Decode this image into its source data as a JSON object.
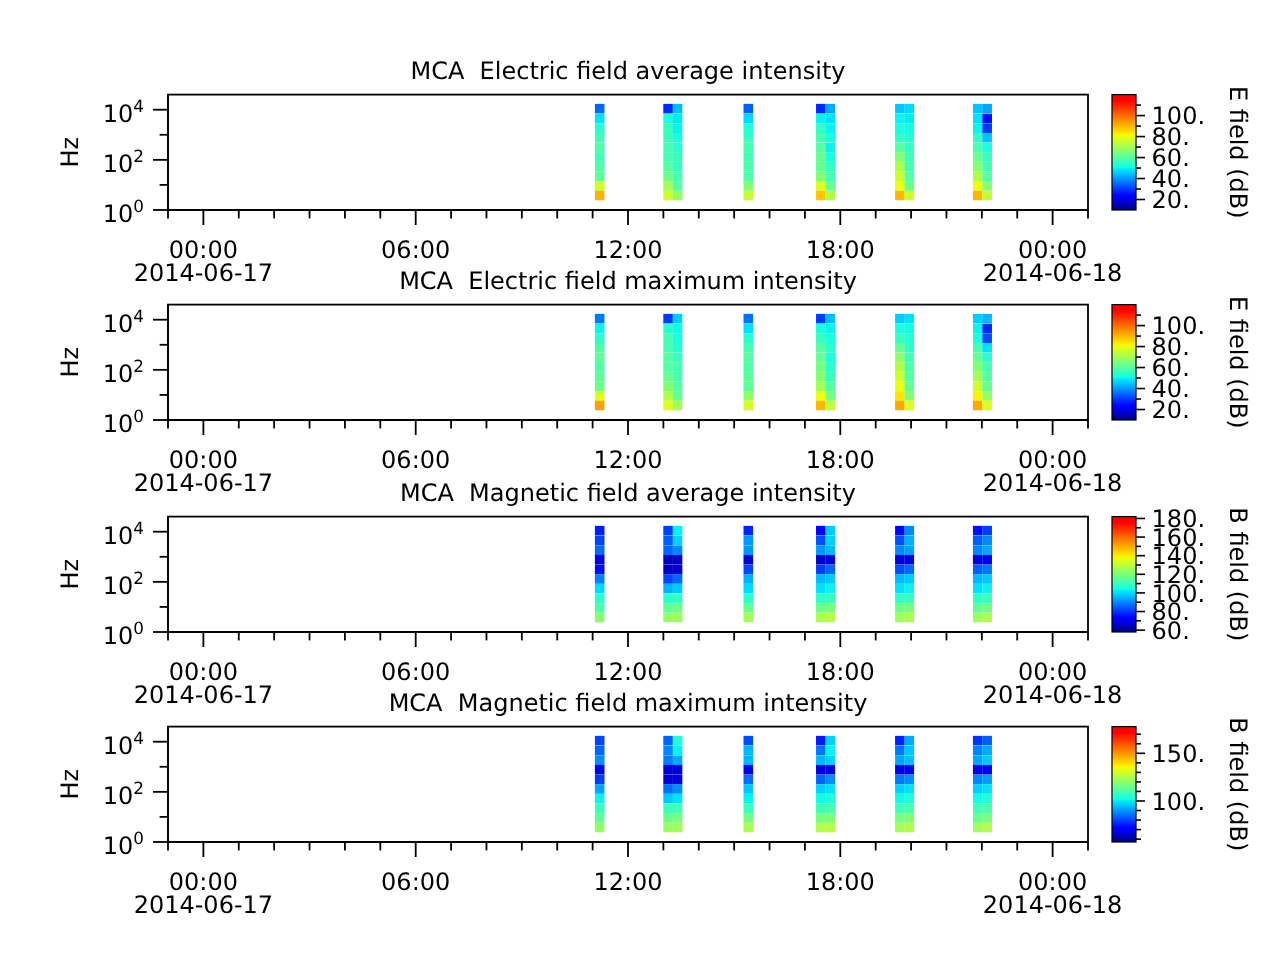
{
  "chart_data": [
    {
      "type": "scatter",
      "title": "MCA  Electric field average intensity",
      "ylabel": "Hz",
      "clabel": "E field (dB)",
      "log": "y",
      "marker": "square",
      "x": [
        "2014-06-17T11:12",
        "2014-06-17T11:12",
        "2014-06-17T11:12",
        "2014-06-17T11:12",
        "2014-06-17T11:12",
        "2014-06-17T11:12",
        "2014-06-17T11:12",
        "2014-06-17T11:12",
        "2014-06-17T11:12",
        "2014-06-17T11:12",
        "2014-06-17T13:08",
        "2014-06-17T13:08",
        "2014-06-17T13:08",
        "2014-06-17T13:08",
        "2014-06-17T13:08",
        "2014-06-17T13:08",
        "2014-06-17T13:08",
        "2014-06-17T13:08",
        "2014-06-17T13:08",
        "2014-06-17T13:08",
        "2014-06-17T13:24",
        "2014-06-17T13:24",
        "2014-06-17T13:24",
        "2014-06-17T13:24",
        "2014-06-17T13:24",
        "2014-06-17T13:24",
        "2014-06-17T13:24",
        "2014-06-17T13:24",
        "2014-06-17T13:24",
        "2014-06-17T13:24",
        "2014-06-17T15:24",
        "2014-06-17T15:24",
        "2014-06-17T15:24",
        "2014-06-17T15:24",
        "2014-06-17T15:24",
        "2014-06-17T15:24",
        "2014-06-17T15:24",
        "2014-06-17T15:24",
        "2014-06-17T15:24",
        "2014-06-17T15:24",
        "2014-06-17T17:27",
        "2014-06-17T17:27",
        "2014-06-17T17:27",
        "2014-06-17T17:27",
        "2014-06-17T17:27",
        "2014-06-17T17:27",
        "2014-06-17T17:27",
        "2014-06-17T17:27",
        "2014-06-17T17:27",
        "2014-06-17T17:27",
        "2014-06-17T17:43",
        "2014-06-17T17:43",
        "2014-06-17T17:43",
        "2014-06-17T17:43",
        "2014-06-17T17:43",
        "2014-06-17T17:43",
        "2014-06-17T17:43",
        "2014-06-17T17:43",
        "2014-06-17T17:43",
        "2014-06-17T17:43",
        "2014-06-17T19:41",
        "2014-06-17T19:41",
        "2014-06-17T19:41",
        "2014-06-17T19:41",
        "2014-06-17T19:41",
        "2014-06-17T19:41",
        "2014-06-17T19:41",
        "2014-06-17T19:41",
        "2014-06-17T19:41",
        "2014-06-17T19:41",
        "2014-06-17T19:57",
        "2014-06-17T19:57",
        "2014-06-17T19:57",
        "2014-06-17T19:57",
        "2014-06-17T19:57",
        "2014-06-17T19:57",
        "2014-06-17T19:57",
        "2014-06-17T19:57",
        "2014-06-17T19:57",
        "2014-06-17T19:57",
        "2014-06-17T21:53",
        "2014-06-17T21:53",
        "2014-06-17T21:53",
        "2014-06-17T21:53",
        "2014-06-17T21:53",
        "2014-06-17T21:53",
        "2014-06-17T21:53",
        "2014-06-17T21:53",
        "2014-06-17T21:53",
        "2014-06-17T21:53",
        "2014-06-17T22:09",
        "2014-06-17T22:09",
        "2014-06-17T22:09",
        "2014-06-17T22:09",
        "2014-06-17T22:09",
        "2014-06-17T22:09",
        "2014-06-17T22:09",
        "2014-06-17T22:09",
        "2014-06-17T22:09",
        "2014-06-17T22:09"
      ],
      "values": [
        11000,
        4400,
        1800,
        760,
        310,
        130,
        54,
        22,
        9.1,
        3.8,
        11000,
        4400,
        1800,
        760,
        310,
        130,
        54,
        22,
        9.1,
        3.8,
        11000,
        4400,
        1800,
        760,
        310,
        130,
        54,
        22,
        9.1,
        3.8,
        11000,
        4400,
        1800,
        760,
        310,
        130,
        54,
        22,
        9.1,
        3.8,
        11000,
        4400,
        1800,
        760,
        310,
        130,
        54,
        22,
        9.1,
        3.8,
        11000,
        4400,
        1800,
        760,
        310,
        130,
        54,
        22,
        9.1,
        3.8,
        11000,
        4400,
        1800,
        760,
        310,
        130,
        54,
        22,
        9.1,
        3.8,
        11000,
        4400,
        1800,
        760,
        310,
        130,
        54,
        22,
        9.1,
        3.8,
        11000,
        4400,
        1800,
        760,
        310,
        130,
        54,
        22,
        9.1,
        3.8,
        11000,
        4400,
        1800,
        760,
        310,
        130,
        54,
        22,
        9.1,
        3.8
      ],
      "cvalues": [
        35,
        48,
        54,
        57,
        59,
        57,
        59,
        61,
        76,
        91,
        28,
        52,
        56,
        56,
        58,
        58,
        60,
        63,
        70,
        76,
        44,
        49,
        50,
        52,
        54,
        56,
        56,
        58,
        60,
        68,
        34,
        47,
        53,
        56,
        58,
        57,
        59,
        59,
        66,
        75,
        28,
        50,
        55,
        58,
        60,
        62,
        62,
        66,
        78,
        88,
        42,
        48,
        50,
        52,
        50,
        52,
        55,
        58,
        62,
        72,
        45,
        50,
        52,
        55,
        60,
        66,
        72,
        76,
        80,
        90,
        47,
        49,
        51,
        53,
        55,
        57,
        58,
        60,
        63,
        76,
        45,
        48,
        50,
        55,
        58,
        62,
        66,
        72,
        80,
        90,
        42,
        25,
        30,
        45,
        52,
        56,
        58,
        60,
        66,
        75
      ],
      "xlim": [
        "2014-06-16T23:00",
        "2014-06-18T01:00"
      ],
      "xticks": [
        {
          "value": "2014-06-16T23:00",
          "label": null
        },
        {
          "value": "2014-06-17T00:00",
          "label": "00:00\n2014-06-17"
        },
        {
          "value": "2014-06-17T01:00",
          "label": null
        },
        {
          "value": "2014-06-17T02:00",
          "label": null
        },
        {
          "value": "2014-06-17T03:00",
          "label": null
        },
        {
          "value": "2014-06-17T04:00",
          "label": null
        },
        {
          "value": "2014-06-17T05:00",
          "label": null
        },
        {
          "value": "2014-06-17T06:00",
          "label": "06:00"
        },
        {
          "value": "2014-06-17T07:00",
          "label": null
        },
        {
          "value": "2014-06-17T08:00",
          "label": null
        },
        {
          "value": "2014-06-17T09:00",
          "label": null
        },
        {
          "value": "2014-06-17T10:00",
          "label": null
        },
        {
          "value": "2014-06-17T11:00",
          "label": null
        },
        {
          "value": "2014-06-17T12:00",
          "label": "12:00"
        },
        {
          "value": "2014-06-17T13:00",
          "label": null
        },
        {
          "value": "2014-06-17T14:00",
          "label": null
        },
        {
          "value": "2014-06-17T15:00",
          "label": null
        },
        {
          "value": "2014-06-17T16:00",
          "label": null
        },
        {
          "value": "2014-06-17T17:00",
          "label": null
        },
        {
          "value": "2014-06-17T18:00",
          "label": "18:00"
        },
        {
          "value": "2014-06-17T19:00",
          "label": null
        },
        {
          "value": "2014-06-17T20:00",
          "label": null
        },
        {
          "value": "2014-06-17T21:00",
          "label": null
        },
        {
          "value": "2014-06-17T22:00",
          "label": null
        },
        {
          "value": "2014-06-17T23:00",
          "label": null
        },
        {
          "value": "2014-06-18T00:00",
          "label": "00:00\n2014-06-18"
        },
        {
          "value": "2014-06-18T01:00",
          "label": null
        }
      ],
      "ylim": [
        1,
        40000
      ],
      "yticks": [
        {
          "value": 1,
          "label": "10$^{0}$"
        },
        {
          "value": 10,
          "label": null
        },
        {
          "value": 100,
          "label": "10$^{2}$"
        },
        {
          "value": 1000,
          "label": null
        },
        {
          "value": 10000,
          "label": "10$^{4}$"
        }
      ],
      "clim": [
        10,
        120
      ],
      "cticks": [
        {
          "value": 20,
          "label": "20."
        },
        {
          "value": 30,
          "label": null
        },
        {
          "value": 40,
          "label": "40."
        },
        {
          "value": 50,
          "label": null
        },
        {
          "value": 60,
          "label": "60."
        },
        {
          "value": 70,
          "label": null
        },
        {
          "value": 80,
          "label": "80."
        },
        {
          "value": 90,
          "label": null
        },
        {
          "value": 100,
          "label": "100."
        },
        {
          "value": 110,
          "label": null
        }
      ]
    },
    {
      "type": "scatter",
      "title": "MCA  Electric field maximum intensity",
      "ylabel": "Hz",
      "clabel": "E field (dB)",
      "log": "y",
      "marker": "square",
      "x": [
        "2014-06-17T11:12",
        "2014-06-17T11:12",
        "2014-06-17T11:12",
        "2014-06-17T11:12",
        "2014-06-17T11:12",
        "2014-06-17T11:12",
        "2014-06-17T11:12",
        "2014-06-17T11:12",
        "2014-06-17T11:12",
        "2014-06-17T11:12",
        "2014-06-17T13:08",
        "2014-06-17T13:08",
        "2014-06-17T13:08",
        "2014-06-17T13:08",
        "2014-06-17T13:08",
        "2014-06-17T13:08",
        "2014-06-17T13:08",
        "2014-06-17T13:08",
        "2014-06-17T13:08",
        "2014-06-17T13:08",
        "2014-06-17T13:24",
        "2014-06-17T13:24",
        "2014-06-17T13:24",
        "2014-06-17T13:24",
        "2014-06-17T13:24",
        "2014-06-17T13:24",
        "2014-06-17T13:24",
        "2014-06-17T13:24",
        "2014-06-17T13:24",
        "2014-06-17T13:24",
        "2014-06-17T15:24",
        "2014-06-17T15:24",
        "2014-06-17T15:24",
        "2014-06-17T15:24",
        "2014-06-17T15:24",
        "2014-06-17T15:24",
        "2014-06-17T15:24",
        "2014-06-17T15:24",
        "2014-06-17T15:24",
        "2014-06-17T15:24",
        "2014-06-17T17:27",
        "2014-06-17T17:27",
        "2014-06-17T17:27",
        "2014-06-17T17:27",
        "2014-06-17T17:27",
        "2014-06-17T17:27",
        "2014-06-17T17:27",
        "2014-06-17T17:27",
        "2014-06-17T17:27",
        "2014-06-17T17:27",
        "2014-06-17T17:43",
        "2014-06-17T17:43",
        "2014-06-17T17:43",
        "2014-06-17T17:43",
        "2014-06-17T17:43",
        "2014-06-17T17:43",
        "2014-06-17T17:43",
        "2014-06-17T17:43",
        "2014-06-17T17:43",
        "2014-06-17T17:43",
        "2014-06-17T19:41",
        "2014-06-17T19:41",
        "2014-06-17T19:41",
        "2014-06-17T19:41",
        "2014-06-17T19:41",
        "2014-06-17T19:41",
        "2014-06-17T19:41",
        "2014-06-17T19:41",
        "2014-06-17T19:41",
        "2014-06-17T19:41",
        "2014-06-17T19:57",
        "2014-06-17T19:57",
        "2014-06-17T19:57",
        "2014-06-17T19:57",
        "2014-06-17T19:57",
        "2014-06-17T19:57",
        "2014-06-17T19:57",
        "2014-06-17T19:57",
        "2014-06-17T19:57",
        "2014-06-17T19:57",
        "2014-06-17T21:53",
        "2014-06-17T21:53",
        "2014-06-17T21:53",
        "2014-06-17T21:53",
        "2014-06-17T21:53",
        "2014-06-17T21:53",
        "2014-06-17T21:53",
        "2014-06-17T21:53",
        "2014-06-17T21:53",
        "2014-06-17T21:53",
        "2014-06-17T22:09",
        "2014-06-17T22:09",
        "2014-06-17T22:09",
        "2014-06-17T22:09",
        "2014-06-17T22:09",
        "2014-06-17T22:09",
        "2014-06-17T22:09",
        "2014-06-17T22:09",
        "2014-06-17T22:09",
        "2014-06-17T22:09"
      ],
      "values": [
        11000,
        4400,
        1800,
        760,
        310,
        130,
        54,
        22,
        9.1,
        3.8,
        11000,
        4400,
        1800,
        760,
        310,
        130,
        54,
        22,
        9.1,
        3.8,
        11000,
        4400,
        1800,
        760,
        310,
        130,
        54,
        22,
        9.1,
        3.8,
        11000,
        4400,
        1800,
        760,
        310,
        130,
        54,
        22,
        9.1,
        3.8,
        11000,
        4400,
        1800,
        760,
        310,
        130,
        54,
        22,
        9.1,
        3.8,
        11000,
        4400,
        1800,
        760,
        310,
        130,
        54,
        22,
        9.1,
        3.8,
        11000,
        4400,
        1800,
        760,
        310,
        130,
        54,
        22,
        9.1,
        3.8,
        11000,
        4400,
        1800,
        760,
        310,
        130,
        54,
        22,
        9.1,
        3.8,
        11000,
        4400,
        1800,
        760,
        310,
        130,
        54,
        22,
        9.1,
        3.8,
        11000,
        4400,
        1800,
        760,
        310,
        130,
        54,
        22,
        9.1,
        3.8
      ],
      "cvalues": [
        37,
        50,
        55,
        59,
        61,
        59,
        61,
        63,
        78,
        93,
        30,
        54,
        58,
        58,
        60,
        60,
        62,
        66,
        72,
        78,
        46,
        51,
        52,
        54,
        56,
        58,
        58,
        60,
        62,
        70,
        36,
        48,
        54,
        58,
        60,
        59,
        61,
        61,
        68,
        77,
        30,
        52,
        56,
        60,
        62,
        64,
        66,
        70,
        80,
        90,
        44,
        50,
        52,
        54,
        52,
        54,
        56,
        60,
        64,
        74,
        46,
        52,
        56,
        62,
        68,
        72,
        76,
        80,
        84,
        92,
        48,
        51,
        53,
        55,
        57,
        59,
        60,
        62,
        66,
        78,
        46,
        50,
        52,
        58,
        62,
        66,
        70,
        76,
        82,
        92,
        44,
        28,
        32,
        48,
        54,
        58,
        60,
        62,
        68,
        78
      ],
      "xlim": [
        "2014-06-16T23:00",
        "2014-06-18T01:00"
      ],
      "xticks": [
        {
          "value": "2014-06-16T23:00",
          "label": null
        },
        {
          "value": "2014-06-17T00:00",
          "label": "00:00\n2014-06-17"
        },
        {
          "value": "2014-06-17T01:00",
          "label": null
        },
        {
          "value": "2014-06-17T02:00",
          "label": null
        },
        {
          "value": "2014-06-17T03:00",
          "label": null
        },
        {
          "value": "2014-06-17T04:00",
          "label": null
        },
        {
          "value": "2014-06-17T05:00",
          "label": null
        },
        {
          "value": "2014-06-17T06:00",
          "label": "06:00"
        },
        {
          "value": "2014-06-17T07:00",
          "label": null
        },
        {
          "value": "2014-06-17T08:00",
          "label": null
        },
        {
          "value": "2014-06-17T09:00",
          "label": null
        },
        {
          "value": "2014-06-17T10:00",
          "label": null
        },
        {
          "value": "2014-06-17T11:00",
          "label": null
        },
        {
          "value": "2014-06-17T12:00",
          "label": "12:00"
        },
        {
          "value": "2014-06-17T13:00",
          "label": null
        },
        {
          "value": "2014-06-17T14:00",
          "label": null
        },
        {
          "value": "2014-06-17T15:00",
          "label": null
        },
        {
          "value": "2014-06-17T16:00",
          "label": null
        },
        {
          "value": "2014-06-17T17:00",
          "label": null
        },
        {
          "value": "2014-06-17T18:00",
          "label": "18:00"
        },
        {
          "value": "2014-06-17T19:00",
          "label": null
        },
        {
          "value": "2014-06-17T20:00",
          "label": null
        },
        {
          "value": "2014-06-17T21:00",
          "label": null
        },
        {
          "value": "2014-06-17T22:00",
          "label": null
        },
        {
          "value": "2014-06-17T23:00",
          "label": null
        },
        {
          "value": "2014-06-18T00:00",
          "label": "00:00\n2014-06-18"
        },
        {
          "value": "2014-06-18T01:00",
          "label": null
        }
      ],
      "ylim": [
        1,
        40000
      ],
      "yticks": [
        {
          "value": 1,
          "label": "10$^{0}$"
        },
        {
          "value": 10,
          "label": null
        },
        {
          "value": 100,
          "label": "10$^{2}$"
        },
        {
          "value": 1000,
          "label": null
        },
        {
          "value": 10000,
          "label": "10$^{4}$"
        }
      ],
      "clim": [
        10,
        120
      ],
      "cticks": [
        {
          "value": 20,
          "label": "20."
        },
        {
          "value": 30,
          "label": null
        },
        {
          "value": 40,
          "label": "40."
        },
        {
          "value": 50,
          "label": null
        },
        {
          "value": 60,
          "label": "60."
        },
        {
          "value": 70,
          "label": null
        },
        {
          "value": 80,
          "label": "80."
        },
        {
          "value": 90,
          "label": null
        },
        {
          "value": 100,
          "label": "100."
        },
        {
          "value": 110,
          "label": null
        }
      ]
    },
    {
      "type": "scatter",
      "title": "MCA  Magnetic field average intensity",
      "ylabel": "Hz",
      "clabel": "B field (dB)",
      "log": "y",
      "marker": "square",
      "x": [
        "2014-06-17T11:12",
        "2014-06-17T11:12",
        "2014-06-17T11:12",
        "2014-06-17T11:12",
        "2014-06-17T11:12",
        "2014-06-17T11:12",
        "2014-06-17T11:12",
        "2014-06-17T11:12",
        "2014-06-17T11:12",
        "2014-06-17T11:12",
        "2014-06-17T13:08",
        "2014-06-17T13:08",
        "2014-06-17T13:08",
        "2014-06-17T13:08",
        "2014-06-17T13:08",
        "2014-06-17T13:08",
        "2014-06-17T13:08",
        "2014-06-17T13:08",
        "2014-06-17T13:08",
        "2014-06-17T13:08",
        "2014-06-17T13:24",
        "2014-06-17T13:24",
        "2014-06-17T13:24",
        "2014-06-17T13:24",
        "2014-06-17T13:24",
        "2014-06-17T13:24",
        "2014-06-17T13:24",
        "2014-06-17T13:24",
        "2014-06-17T13:24",
        "2014-06-17T13:24",
        "2014-06-17T15:24",
        "2014-06-17T15:24",
        "2014-06-17T15:24",
        "2014-06-17T15:24",
        "2014-06-17T15:24",
        "2014-06-17T15:24",
        "2014-06-17T15:24",
        "2014-06-17T15:24",
        "2014-06-17T15:24",
        "2014-06-17T15:24",
        "2014-06-17T17:27",
        "2014-06-17T17:27",
        "2014-06-17T17:27",
        "2014-06-17T17:27",
        "2014-06-17T17:27",
        "2014-06-17T17:27",
        "2014-06-17T17:27",
        "2014-06-17T17:27",
        "2014-06-17T17:27",
        "2014-06-17T17:27",
        "2014-06-17T17:43",
        "2014-06-17T17:43",
        "2014-06-17T17:43",
        "2014-06-17T17:43",
        "2014-06-17T17:43",
        "2014-06-17T17:43",
        "2014-06-17T17:43",
        "2014-06-17T17:43",
        "2014-06-17T17:43",
        "2014-06-17T17:43",
        "2014-06-17T19:41",
        "2014-06-17T19:41",
        "2014-06-17T19:41",
        "2014-06-17T19:41",
        "2014-06-17T19:41",
        "2014-06-17T19:41",
        "2014-06-17T19:41",
        "2014-06-17T19:41",
        "2014-06-17T19:41",
        "2014-06-17T19:41",
        "2014-06-17T19:57",
        "2014-06-17T19:57",
        "2014-06-17T19:57",
        "2014-06-17T19:57",
        "2014-06-17T19:57",
        "2014-06-17T19:57",
        "2014-06-17T19:57",
        "2014-06-17T19:57",
        "2014-06-17T19:57",
        "2014-06-17T19:57",
        "2014-06-17T21:53",
        "2014-06-17T21:53",
        "2014-06-17T21:53",
        "2014-06-17T21:53",
        "2014-06-17T21:53",
        "2014-06-17T21:53",
        "2014-06-17T21:53",
        "2014-06-17T21:53",
        "2014-06-17T21:53",
        "2014-06-17T21:53",
        "2014-06-17T22:09",
        "2014-06-17T22:09",
        "2014-06-17T22:09",
        "2014-06-17T22:09",
        "2014-06-17T22:09",
        "2014-06-17T22:09",
        "2014-06-17T22:09",
        "2014-06-17T22:09",
        "2014-06-17T22:09",
        "2014-06-17T22:09"
      ],
      "values": [
        11000,
        4400,
        1800,
        760,
        310,
        130,
        54,
        22,
        9.1,
        3.8,
        11000,
        4400,
        1800,
        760,
        310,
        130,
        54,
        22,
        9.1,
        3.8,
        11000,
        4400,
        1800,
        760,
        310,
        130,
        54,
        22,
        9.1,
        3.8,
        11000,
        4400,
        1800,
        760,
        310,
        130,
        54,
        22,
        9.1,
        3.8,
        11000,
        4400,
        1800,
        760,
        310,
        130,
        54,
        22,
        9.1,
        3.8,
        11000,
        4400,
        1800,
        760,
        310,
        130,
        54,
        22,
        9.1,
        3.8,
        11000,
        4400,
        1800,
        760,
        310,
        130,
        54,
        22,
        9.1,
        3.8,
        11000,
        4400,
        1800,
        760,
        310,
        130,
        54,
        22,
        9.1,
        3.8,
        11000,
        4400,
        1800,
        760,
        310,
        130,
        54,
        22,
        9.1,
        3.8,
        11000,
        4400,
        1800,
        760,
        310,
        130,
        54,
        22,
        9.1,
        3.8
      ],
      "cvalues": [
        77,
        82,
        86,
        69,
        75,
        89,
        100,
        108,
        113,
        122,
        81,
        85,
        86,
        65,
        65,
        82,
        95,
        108,
        116,
        124,
        103,
        99,
        90,
        66,
        68,
        86,
        98,
        109,
        118,
        125,
        78,
        92,
        92,
        68,
        82,
        95,
        100,
        108,
        117,
        126,
        72,
        83,
        92,
        66,
        81,
        96,
        101,
        109,
        118,
        127,
        98,
        99,
        96,
        68,
        86,
        98,
        103,
        110,
        120,
        129,
        74,
        83,
        90,
        68,
        83,
        96,
        101,
        109,
        118,
        125,
        90,
        95,
        93,
        69,
        86,
        98,
        103,
        110,
        120,
        127,
        75,
        85,
        90,
        68,
        85,
        96,
        101,
        109,
        116,
        125,
        81,
        90,
        94,
        70,
        88,
        98,
        103,
        110,
        118,
        127
      ],
      "xlim": [
        "2014-06-16T23:00",
        "2014-06-18T01:00"
      ],
      "xticks": [
        {
          "value": "2014-06-16T23:00",
          "label": null
        },
        {
          "value": "2014-06-17T00:00",
          "label": "00:00\n2014-06-17"
        },
        {
          "value": "2014-06-17T01:00",
          "label": null
        },
        {
          "value": "2014-06-17T02:00",
          "label": null
        },
        {
          "value": "2014-06-17T03:00",
          "label": null
        },
        {
          "value": "2014-06-17T04:00",
          "label": null
        },
        {
          "value": "2014-06-17T05:00",
          "label": null
        },
        {
          "value": "2014-06-17T06:00",
          "label": "06:00"
        },
        {
          "value": "2014-06-17T07:00",
          "label": null
        },
        {
          "value": "2014-06-17T08:00",
          "label": null
        },
        {
          "value": "2014-06-17T09:00",
          "label": null
        },
        {
          "value": "2014-06-17T10:00",
          "label": null
        },
        {
          "value": "2014-06-17T11:00",
          "label": null
        },
        {
          "value": "2014-06-17T12:00",
          "label": "12:00"
        },
        {
          "value": "2014-06-17T13:00",
          "label": null
        },
        {
          "value": "2014-06-17T14:00",
          "label": null
        },
        {
          "value": "2014-06-17T15:00",
          "label": null
        },
        {
          "value": "2014-06-17T16:00",
          "label": null
        },
        {
          "value": "2014-06-17T17:00",
          "label": null
        },
        {
          "value": "2014-06-17T18:00",
          "label": "18:00"
        },
        {
          "value": "2014-06-17T19:00",
          "label": null
        },
        {
          "value": "2014-06-17T20:00",
          "label": null
        },
        {
          "value": "2014-06-17T21:00",
          "label": null
        },
        {
          "value": "2014-06-17T22:00",
          "label": null
        },
        {
          "value": "2014-06-17T23:00",
          "label": null
        },
        {
          "value": "2014-06-18T00:00",
          "label": "00:00\n2014-06-18"
        },
        {
          "value": "2014-06-18T01:00",
          "label": null
        }
      ],
      "ylim": [
        1,
        40000
      ],
      "yticks": [
        {
          "value": 1,
          "label": "10$^{0}$"
        },
        {
          "value": 10,
          "label": null
        },
        {
          "value": 100,
          "label": "10$^{2}$"
        },
        {
          "value": 1000,
          "label": null
        },
        {
          "value": 10000,
          "label": "10$^{4}$"
        }
      ],
      "clim": [
        58,
        182
      ],
      "cticks": [
        {
          "value": 60,
          "label": "60."
        },
        {
          "value": 70,
          "label": null
        },
        {
          "value": 80,
          "label": "80."
        },
        {
          "value": 90,
          "label": null
        },
        {
          "value": 100,
          "label": "100."
        },
        {
          "value": 110,
          "label": null
        },
        {
          "value": 120,
          "label": "120."
        },
        {
          "value": 130,
          "label": null
        },
        {
          "value": 140,
          "label": "140."
        },
        {
          "value": 150,
          "label": null
        },
        {
          "value": 160,
          "label": "160."
        },
        {
          "value": 170,
          "label": null
        },
        {
          "value": 180,
          "label": "180."
        }
      ]
    },
    {
      "type": "scatter",
      "title": "MCA  Magnetic field maximum intensity",
      "ylabel": "Hz",
      "clabel": "B field (dB)",
      "log": "y",
      "marker": "square",
      "x": [
        "2014-06-17T11:12",
        "2014-06-17T11:12",
        "2014-06-17T11:12",
        "2014-06-17T11:12",
        "2014-06-17T11:12",
        "2014-06-17T11:12",
        "2014-06-17T11:12",
        "2014-06-17T11:12",
        "2014-06-17T11:12",
        "2014-06-17T11:12",
        "2014-06-17T13:08",
        "2014-06-17T13:08",
        "2014-06-17T13:08",
        "2014-06-17T13:08",
        "2014-06-17T13:08",
        "2014-06-17T13:08",
        "2014-06-17T13:08",
        "2014-06-17T13:08",
        "2014-06-17T13:08",
        "2014-06-17T13:08",
        "2014-06-17T13:24",
        "2014-06-17T13:24",
        "2014-06-17T13:24",
        "2014-06-17T13:24",
        "2014-06-17T13:24",
        "2014-06-17T13:24",
        "2014-06-17T13:24",
        "2014-06-17T13:24",
        "2014-06-17T13:24",
        "2014-06-17T13:24",
        "2014-06-17T15:24",
        "2014-06-17T15:24",
        "2014-06-17T15:24",
        "2014-06-17T15:24",
        "2014-06-17T15:24",
        "2014-06-17T15:24",
        "2014-06-17T15:24",
        "2014-06-17T15:24",
        "2014-06-17T15:24",
        "2014-06-17T15:24",
        "2014-06-17T17:27",
        "2014-06-17T17:27",
        "2014-06-17T17:27",
        "2014-06-17T17:27",
        "2014-06-17T17:27",
        "2014-06-17T17:27",
        "2014-06-17T17:27",
        "2014-06-17T17:27",
        "2014-06-17T17:27",
        "2014-06-17T17:27",
        "2014-06-17T17:43",
        "2014-06-17T17:43",
        "2014-06-17T17:43",
        "2014-06-17T17:43",
        "2014-06-17T17:43",
        "2014-06-17T17:43",
        "2014-06-17T17:43",
        "2014-06-17T17:43",
        "2014-06-17T17:43",
        "2014-06-17T17:43",
        "2014-06-17T19:41",
        "2014-06-17T19:41",
        "2014-06-17T19:41",
        "2014-06-17T19:41",
        "2014-06-17T19:41",
        "2014-06-17T19:41",
        "2014-06-17T19:41",
        "2014-06-17T19:41",
        "2014-06-17T19:41",
        "2014-06-17T19:41",
        "2014-06-17T19:57",
        "2014-06-17T19:57",
        "2014-06-17T19:57",
        "2014-06-17T19:57",
        "2014-06-17T19:57",
        "2014-06-17T19:57",
        "2014-06-17T19:57",
        "2014-06-17T19:57",
        "2014-06-17T19:57",
        "2014-06-17T19:57",
        "2014-06-17T21:53",
        "2014-06-17T21:53",
        "2014-06-17T21:53",
        "2014-06-17T21:53",
        "2014-06-17T21:53",
        "2014-06-17T21:53",
        "2014-06-17T21:53",
        "2014-06-17T21:53",
        "2014-06-17T21:53",
        "2014-06-17T21:53",
        "2014-06-17T22:09",
        "2014-06-17T22:09",
        "2014-06-17T22:09",
        "2014-06-17T22:09",
        "2014-06-17T22:09",
        "2014-06-17T22:09",
        "2014-06-17T22:09",
        "2014-06-17T22:09",
        "2014-06-17T22:09",
        "2014-06-17T22:09"
      ],
      "values": [
        11000,
        4400,
        1800,
        760,
        310,
        130,
        54,
        22,
        9.1,
        3.8,
        11000,
        4400,
        1800,
        760,
        310,
        130,
        54,
        22,
        9.1,
        3.8,
        11000,
        4400,
        1800,
        760,
        310,
        130,
        54,
        22,
        9.1,
        3.8,
        11000,
        4400,
        1800,
        760,
        310,
        130,
        54,
        22,
        9.1,
        3.8,
        11000,
        4400,
        1800,
        760,
        310,
        130,
        54,
        22,
        9.1,
        3.8,
        11000,
        4400,
        1800,
        760,
        310,
        130,
        54,
        22,
        9.1,
        3.8,
        11000,
        4400,
        1800,
        760,
        310,
        130,
        54,
        22,
        9.1,
        3.8,
        11000,
        4400,
        1800,
        760,
        310,
        130,
        54,
        22,
        9.1,
        3.8,
        11000,
        4400,
        1800,
        760,
        310,
        130,
        54,
        22,
        9.1,
        3.8,
        11000,
        4400,
        1800,
        760,
        310,
        130,
        54,
        22,
        9.1,
        3.8
      ],
      "cvalues": [
        80,
        84,
        89,
        69,
        79,
        92,
        101,
        108,
        113,
        121,
        84,
        88,
        87,
        66,
        66,
        85,
        96,
        108,
        115,
        122,
        104,
        101,
        92,
        67,
        68,
        89,
        99,
        109,
        117,
        123,
        81,
        94,
        94,
        69,
        85,
        96,
        101,
        108,
        116,
        124,
        75,
        86,
        94,
        67,
        84,
        97,
        102,
        109,
        117,
        125,
        97,
        101,
        97,
        68,
        89,
        99,
        104,
        110,
        118,
        126,
        76,
        86,
        92,
        68,
        86,
        97,
        102,
        109,
        117,
        123,
        92,
        96,
        95,
        69,
        89,
        99,
        104,
        110,
        118,
        125,
        78,
        88,
        92,
        68,
        88,
        97,
        102,
        109,
        115,
        123,
        83,
        92,
        96,
        70,
        91,
        99,
        104,
        110,
        117,
        125
      ],
      "xlim": [
        "2014-06-16T23:00",
        "2014-06-18T01:00"
      ],
      "xticks": [
        {
          "value": "2014-06-16T23:00",
          "label": null
        },
        {
          "value": "2014-06-17T00:00",
          "label": "00:00\n2014-06-17"
        },
        {
          "value": "2014-06-17T01:00",
          "label": null
        },
        {
          "value": "2014-06-17T02:00",
          "label": null
        },
        {
          "value": "2014-06-17T03:00",
          "label": null
        },
        {
          "value": "2014-06-17T04:00",
          "label": null
        },
        {
          "value": "2014-06-17T05:00",
          "label": null
        },
        {
          "value": "2014-06-17T06:00",
          "label": "06:00"
        },
        {
          "value": "2014-06-17T07:00",
          "label": null
        },
        {
          "value": "2014-06-17T08:00",
          "label": null
        },
        {
          "value": "2014-06-17T09:00",
          "label": null
        },
        {
          "value": "2014-06-17T10:00",
          "label": null
        },
        {
          "value": "2014-06-17T11:00",
          "label": null
        },
        {
          "value": "2014-06-17T12:00",
          "label": "12:00"
        },
        {
          "value": "2014-06-17T13:00",
          "label": null
        },
        {
          "value": "2014-06-17T14:00",
          "label": null
        },
        {
          "value": "2014-06-17T15:00",
          "label": null
        },
        {
          "value": "2014-06-17T16:00",
          "label": null
        },
        {
          "value": "2014-06-17T17:00",
          "label": null
        },
        {
          "value": "2014-06-17T18:00",
          "label": "18:00"
        },
        {
          "value": "2014-06-17T19:00",
          "label": null
        },
        {
          "value": "2014-06-17T20:00",
          "label": null
        },
        {
          "value": "2014-06-17T21:00",
          "label": null
        },
        {
          "value": "2014-06-17T22:00",
          "label": null
        },
        {
          "value": "2014-06-17T23:00",
          "label": null
        },
        {
          "value": "2014-06-18T00:00",
          "label": "00:00\n2014-06-18"
        },
        {
          "value": "2014-06-18T01:00",
          "label": null
        }
      ],
      "ylim": [
        1,
        40000
      ],
      "yticks": [
        {
          "value": 1,
          "label": "10$^{0}$"
        },
        {
          "value": 10,
          "label": null
        },
        {
          "value": 100,
          "label": "10$^{2}$"
        },
        {
          "value": 1000,
          "label": null
        },
        {
          "value": 10000,
          "label": "10$^{4}$"
        }
      ],
      "clim": [
        57,
        178
      ],
      "cticks": [
        {
          "value": 60,
          "label": null
        },
        {
          "value": 70,
          "label": null
        },
        {
          "value": 80,
          "label": null
        },
        {
          "value": 90,
          "label": null
        },
        {
          "value": 100,
          "label": "100."
        },
        {
          "value": 110,
          "label": null
        },
        {
          "value": 120,
          "label": null
        },
        {
          "value": 130,
          "label": null
        },
        {
          "value": 140,
          "label": null
        },
        {
          "value": 150,
          "label": "150."
        },
        {
          "value": 160,
          "label": null
        },
        {
          "value": 170,
          "label": null
        }
      ]
    }
  ]
}
